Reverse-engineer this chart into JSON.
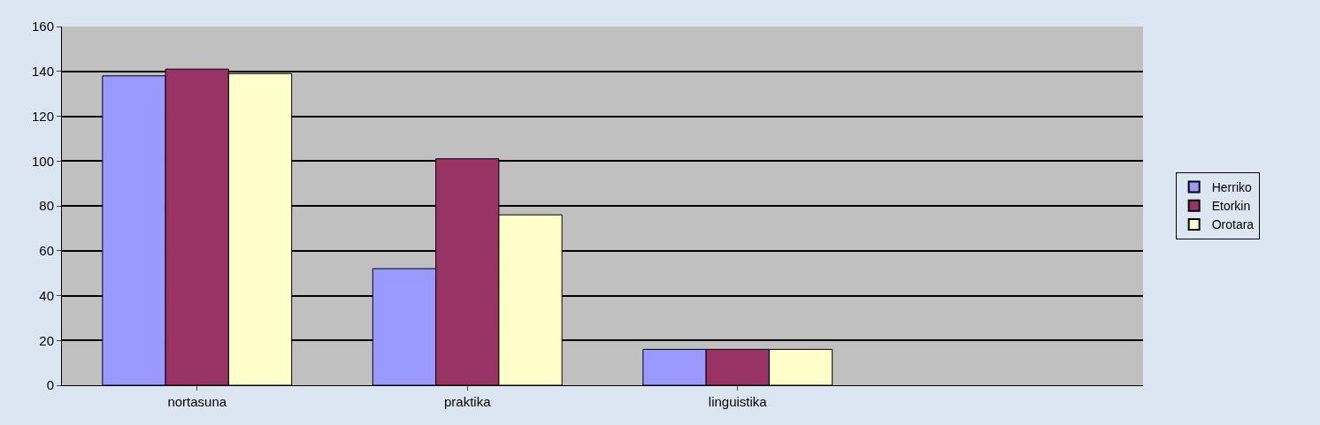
{
  "chart_data": {
    "type": "bar",
    "categories": [
      "nortasuna",
      "praktika",
      "linguistika",
      null
    ],
    "series": [
      {
        "name": "Herriko",
        "color": "#9999ff",
        "values": [
          138,
          52,
          16,
          null
        ]
      },
      {
        "name": "Etorkin",
        "color": "#993366",
        "values": [
          141,
          101,
          16,
          null
        ]
      },
      {
        "name": "Orotara",
        "color": "#ffffcc",
        "values": [
          139,
          76,
          16,
          null
        ]
      }
    ],
    "ylim": [
      0,
      160
    ],
    "yticks": [
      0,
      20,
      40,
      60,
      80,
      100,
      120,
      140,
      160
    ],
    "grid": "y",
    "legend": "right"
  }
}
